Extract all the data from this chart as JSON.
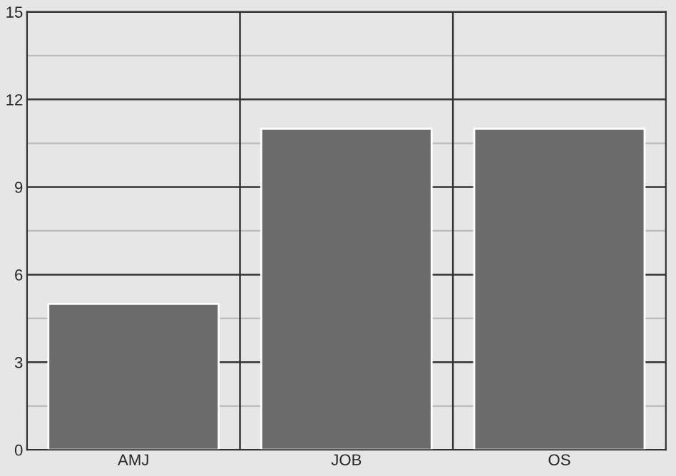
{
  "chart_data": {
    "type": "bar",
    "categories": [
      "AMJ",
      "JOB",
      "OS"
    ],
    "values": [
      5,
      11,
      11
    ],
    "color": "#6b6b6b",
    "ylim": [
      0,
      15
    ],
    "yticks": [
      0,
      3,
      6,
      9,
      12,
      15
    ],
    "grid": true
  }
}
